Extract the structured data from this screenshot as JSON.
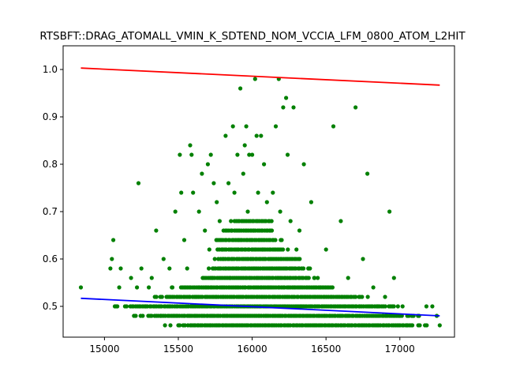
{
  "chart_data": {
    "type": "scatter",
    "title": "RTSBFT::DRAG_ATOMALL_VMIN_K_SDTEND_NOM_VCCIA_LFM_0800_ATOM_L2HIT",
    "xlabel": "",
    "ylabel": "",
    "xlim": [
      14720,
      17370
    ],
    "ylim": [
      0.435,
      1.05
    ],
    "xticks": [
      15000,
      15500,
      16000,
      16500,
      17000
    ],
    "yticks": [
      0.5,
      0.6,
      0.7,
      0.8,
      0.9,
      1.0
    ],
    "xtick_labels": [
      "15000",
      "15500",
      "16000",
      "16500",
      "17000"
    ],
    "ytick_labels": [
      "0.5",
      "0.6",
      "0.7",
      "0.8",
      "0.9",
      "1.0"
    ],
    "grid": false,
    "series": [
      {
        "kind": "points",
        "color": "#008000",
        "points": [
          [
            14840,
            0.54
          ],
          [
            15040,
            0.58
          ],
          [
            15050,
            0.6
          ],
          [
            15060,
            0.64
          ],
          [
            15070,
            0.5
          ],
          [
            15100,
            0.54
          ],
          [
            15110,
            0.58
          ],
          [
            15150,
            0.5
          ],
          [
            15180,
            0.56
          ],
          [
            15200,
            0.48
          ],
          [
            15220,
            0.54
          ],
          [
            15230,
            0.76
          ],
          [
            15250,
            0.58
          ],
          [
            15280,
            0.5
          ],
          [
            15300,
            0.54
          ],
          [
            15320,
            0.56
          ],
          [
            15350,
            0.66
          ],
          [
            15380,
            0.48
          ],
          [
            15400,
            0.6
          ],
          [
            15410,
            0.46
          ],
          [
            15420,
            0.52
          ],
          [
            15440,
            0.58
          ],
          [
            15460,
            0.54
          ],
          [
            15480,
            0.7
          ],
          [
            15500,
            0.46
          ],
          [
            15510,
            0.82
          ],
          [
            15520,
            0.74
          ],
          [
            15540,
            0.64
          ],
          [
            15560,
            0.58
          ],
          [
            15580,
            0.84
          ],
          [
            15590,
            0.82
          ],
          [
            15600,
            0.74
          ],
          [
            15620,
            0.52
          ],
          [
            15640,
            0.7
          ],
          [
            15660,
            0.78
          ],
          [
            15680,
            0.66
          ],
          [
            15700,
            0.8
          ],
          [
            15710,
            0.62
          ],
          [
            15720,
            0.82
          ],
          [
            15730,
            0.56
          ],
          [
            15740,
            0.76
          ],
          [
            15760,
            0.72
          ],
          [
            15780,
            0.68
          ],
          [
            15800,
            0.62
          ],
          [
            15820,
            0.86
          ],
          [
            15840,
            0.76
          ],
          [
            15850,
            0.56
          ],
          [
            15860,
            0.66
          ],
          [
            15870,
            0.88
          ],
          [
            15880,
            0.74
          ],
          [
            15900,
            0.82
          ],
          [
            15910,
            0.64
          ],
          [
            15920,
            0.96
          ],
          [
            15940,
            0.78
          ],
          [
            15950,
            0.84
          ],
          [
            15960,
            0.88
          ],
          [
            15970,
            0.7
          ],
          [
            15980,
            0.82
          ],
          [
            15990,
            0.6
          ],
          [
            16000,
            0.82
          ],
          [
            16010,
            0.66
          ],
          [
            16020,
            0.98
          ],
          [
            16030,
            0.86
          ],
          [
            16040,
            0.74
          ],
          [
            16060,
            0.86
          ],
          [
            16070,
            0.62
          ],
          [
            16080,
            0.8
          ],
          [
            16100,
            0.72
          ],
          [
            16120,
            0.66
          ],
          [
            16140,
            0.74
          ],
          [
            16160,
            0.88
          ],
          [
            16180,
            0.98
          ],
          [
            16190,
            0.7
          ],
          [
            16200,
            0.64
          ],
          [
            16210,
            0.92
          ],
          [
            16230,
            0.94
          ],
          [
            16240,
            0.82
          ],
          [
            16260,
            0.68
          ],
          [
            16280,
            0.92
          ],
          [
            16300,
            0.62
          ],
          [
            16320,
            0.66
          ],
          [
            16350,
            0.8
          ],
          [
            16380,
            0.58
          ],
          [
            16400,
            0.72
          ],
          [
            16420,
            0.56
          ],
          [
            16460,
            0.54
          ],
          [
            16500,
            0.62
          ],
          [
            16550,
            0.88
          ],
          [
            16600,
            0.68
          ],
          [
            16650,
            0.56
          ],
          [
            16700,
            0.92
          ],
          [
            16730,
            0.52
          ],
          [
            16750,
            0.6
          ],
          [
            16780,
            0.78
          ],
          [
            16820,
            0.54
          ],
          [
            16850,
            0.5
          ],
          [
            16900,
            0.52
          ],
          [
            16930,
            0.7
          ],
          [
            16960,
            0.56
          ],
          [
            17000,
            0.48
          ],
          [
            17050,
            0.46
          ],
          [
            17080,
            0.48
          ],
          [
            17180,
            0.5
          ],
          [
            17220,
            0.5
          ],
          [
            17250,
            0.48
          ],
          [
            17270,
            0.46
          ]
        ],
        "bands": [
          {
            "y": 0.46,
            "xmin": 15430,
            "xmax": 17200
          },
          {
            "y": 0.48,
            "xmin": 15180,
            "xmax": 17150
          },
          {
            "y": 0.5,
            "xmin": 15060,
            "xmax": 17050
          },
          {
            "y": 0.52,
            "xmin": 15300,
            "xmax": 16800
          },
          {
            "y": 0.54,
            "xmin": 15450,
            "xmax": 16550
          },
          {
            "y": 0.56,
            "xmin": 15600,
            "xmax": 16450
          },
          {
            "y": 0.58,
            "xmin": 15700,
            "xmax": 16400
          },
          {
            "y": 0.6,
            "xmin": 15720,
            "xmax": 16350
          },
          {
            "y": 0.62,
            "xmin": 15750,
            "xmax": 16250
          },
          {
            "y": 0.64,
            "xmin": 15750,
            "xmax": 16200
          },
          {
            "y": 0.66,
            "xmin": 15800,
            "xmax": 16150
          },
          {
            "y": 0.68,
            "xmin": 15850,
            "xmax": 16150
          }
        ]
      },
      {
        "kind": "line",
        "color": "#ff0000",
        "x": [
          14840,
          17270
        ],
        "y": [
          1.003,
          0.967
        ]
      },
      {
        "kind": "line",
        "color": "#0000ff",
        "x": [
          14840,
          17270
        ],
        "y": [
          0.517,
          0.48
        ]
      }
    ]
  }
}
